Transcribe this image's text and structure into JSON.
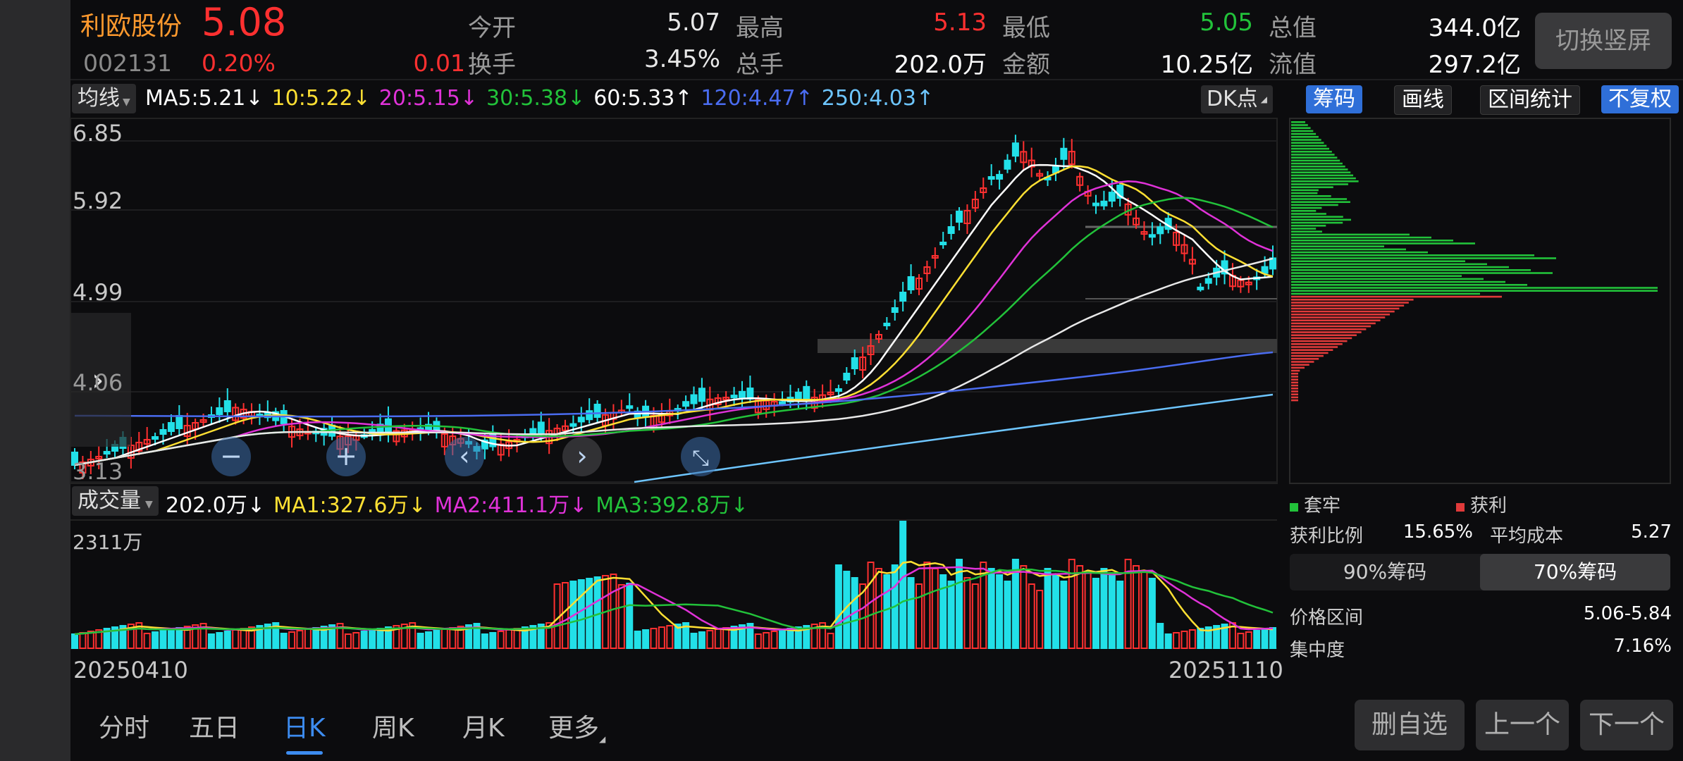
{
  "header": {
    "stock_name": "利欧股份",
    "price": "5.08",
    "code": "002131",
    "change_pct": "0.20%",
    "change_amt": "0.01",
    "quotes": [
      {
        "label": "今开",
        "value": "5.07",
        "color": "#e8e8e8"
      },
      {
        "label": "最高",
        "value": "5.13",
        "color": "#ff3030"
      },
      {
        "label": "最低",
        "value": "5.05",
        "color": "#22c23a"
      },
      {
        "label": "总值",
        "value": "344.0亿",
        "color": "#ffffff"
      },
      {
        "label": "换手",
        "value": "3.45%",
        "color": "#e8e8e8"
      },
      {
        "label": "总手",
        "value": "202.0万",
        "color": "#ffffff"
      },
      {
        "label": "金额",
        "value": "10.25亿",
        "color": "#ffffff"
      },
      {
        "label": "流值",
        "value": "297.2亿",
        "color": "#ffffff"
      }
    ],
    "switch_button": "切换竖屏"
  },
  "ma_bar": {
    "selector": "均线",
    "items": [
      {
        "text": "MA5:5.21",
        "arrow": "↓",
        "color": "#ffffff"
      },
      {
        "text": "10:5.22",
        "arrow": "↓",
        "color": "#ffe033"
      },
      {
        "text": "20:5.15",
        "arrow": "↓",
        "color": "#e032d8"
      },
      {
        "text": "30:5.38",
        "arrow": "↓",
        "color": "#22c23a"
      },
      {
        "text": "60:5.33",
        "arrow": "↑",
        "color": "#ffffff"
      },
      {
        "text": "120:4.47",
        "arrow": "↑",
        "color": "#4a6cf0"
      },
      {
        "text": "250:4.03",
        "arrow": "↑",
        "color": "#6ec6ff"
      }
    ],
    "dk_button": "DK点"
  },
  "right_tabs": {
    "chips": "筹码",
    "draw": "画线",
    "range_stats": "区间统计",
    "adjust": "不复权"
  },
  "y_axis": [
    "6.85",
    "5.92",
    "4.99",
    "4.06",
    "3.13"
  ],
  "volume_bar": {
    "selector": "成交量",
    "items": [
      {
        "text": "202.0万",
        "arrow": "↓",
        "color": "#ffffff"
      },
      {
        "text": "MA1:327.6万",
        "arrow": "↓",
        "color": "#ffe033"
      },
      {
        "text": "MA2:411.1万",
        "arrow": "↓",
        "color": "#e032d8"
      },
      {
        "text": "MA3:392.8万",
        "arrow": "↓",
        "color": "#22c23a"
      }
    ],
    "max_label": "2311万"
  },
  "dates": {
    "start": "20250410",
    "end": "20251110"
  },
  "chip_panel": {
    "legend_trapped": "套牢",
    "legend_profit": "获利",
    "profit_ratio_label": "获利比例",
    "profit_ratio": "15.65%",
    "avg_cost_label": "平均成本",
    "avg_cost": "5.27",
    "tab_90": "90%筹码",
    "tab_70": "70%筹码",
    "price_range_label": "价格区间",
    "price_range": "5.06-5.84",
    "concentration_label": "集中度",
    "concentration": "7.16%"
  },
  "period_tabs": [
    "分时",
    "五日",
    "日K",
    "周K",
    "月K",
    "更多"
  ],
  "active_period": "日K",
  "bottom_buttons": {
    "delete": "删自选",
    "prev": "上一个",
    "next": "下一个"
  },
  "colors": {
    "up": "#ff3030",
    "down": "#22e0e8",
    "green": "#22c23a",
    "accent": "#2f6fd8"
  }
}
